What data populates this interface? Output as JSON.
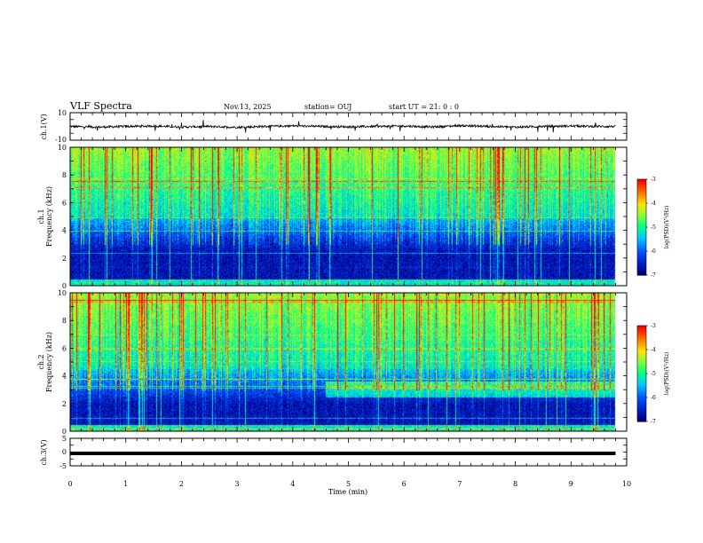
{
  "header": {
    "title": "VLF Spectra",
    "date": "Nov.13, 2025",
    "station": "station= OUJ",
    "start": "start  UT =   21: 0  : 0"
  },
  "colorbar": {
    "label": "log(PSD)(V²/Hz)",
    "ticks": [
      "-3",
      "-4",
      "-5",
      "-6",
      "-7"
    ],
    "colors": [
      "#ff0000",
      "#ff8c00",
      "#ffe000",
      "#8cff40",
      "#00ff80",
      "#00e0ff",
      "#0080ff",
      "#0020c0",
      "#000080"
    ]
  },
  "chart_data": [
    {
      "type": "line",
      "panel": "ch1-waveform",
      "ylabel": "ch.1(V)",
      "ylim": [
        -10,
        10
      ],
      "yticks": [
        "10",
        "-10"
      ],
      "xlim": [
        0,
        10
      ],
      "series": [
        {
          "x": [
            0,
            0.5,
            1,
            1.5,
            2,
            2.5,
            3,
            3.5,
            4,
            4.5,
            5,
            5.5,
            6,
            6.5,
            7,
            7.5,
            8,
            8.5,
            9,
            9.5,
            9.8
          ],
          "values": [
            0,
            -0.5,
            0,
            0.3,
            -0.4,
            0,
            -0.6,
            0,
            0.4,
            0,
            -0.3,
            0,
            0.3,
            -0.4,
            0.6,
            0,
            -0.5,
            0,
            0.3,
            0,
            0
          ]
        }
      ]
    },
    {
      "type": "heatmap",
      "panel": "ch1-spectrogram",
      "ylabel": "ch.1\nFrequency (kHz)",
      "xlim": [
        0,
        10
      ],
      "ylim": [
        0,
        10
      ],
      "yticks": [
        "0",
        "2",
        "4",
        "6",
        "8",
        "10"
      ],
      "data_end_min": 9.8,
      "low_band_khz": [
        0.5,
        2.5
      ],
      "noise_band_khz": [
        2.5,
        5
      ],
      "sferic_band_khz": [
        5,
        10
      ],
      "zlim": [
        -7,
        -3
      ]
    },
    {
      "type": "heatmap",
      "panel": "ch2-spectrogram",
      "ylabel": "ch.2\nFrequency (kHz)",
      "xlim": [
        0,
        10
      ],
      "ylim": [
        0,
        10
      ],
      "yticks": [
        "0",
        "2",
        "4",
        "6",
        "8",
        "10"
      ],
      "data_end_min": 9.8,
      "low_band_khz": [
        0.5,
        2
      ],
      "noise_band_khz": [
        2,
        4.5
      ],
      "sferic_band_khz": [
        4.5,
        10
      ],
      "enhanced_band_start_min": 4.6,
      "enhanced_band_khz": [
        2.5,
        3.6
      ],
      "zlim": [
        -7,
        -3
      ]
    },
    {
      "type": "line",
      "panel": "ch3-waveform",
      "ylabel": "ch.3(V)",
      "ylim": [
        -5,
        5
      ],
      "yticks": [
        "5",
        "0",
        "-5"
      ],
      "xlim": [
        0,
        10
      ],
      "xlabel": "Time (min)",
      "xticks": [
        "0",
        "1",
        "2",
        "3",
        "4",
        "5",
        "6",
        "7",
        "8",
        "9",
        "10"
      ],
      "series": [
        {
          "x": [
            0,
            9.8
          ],
          "values": [
            -0.5,
            -0.5
          ]
        }
      ]
    }
  ]
}
